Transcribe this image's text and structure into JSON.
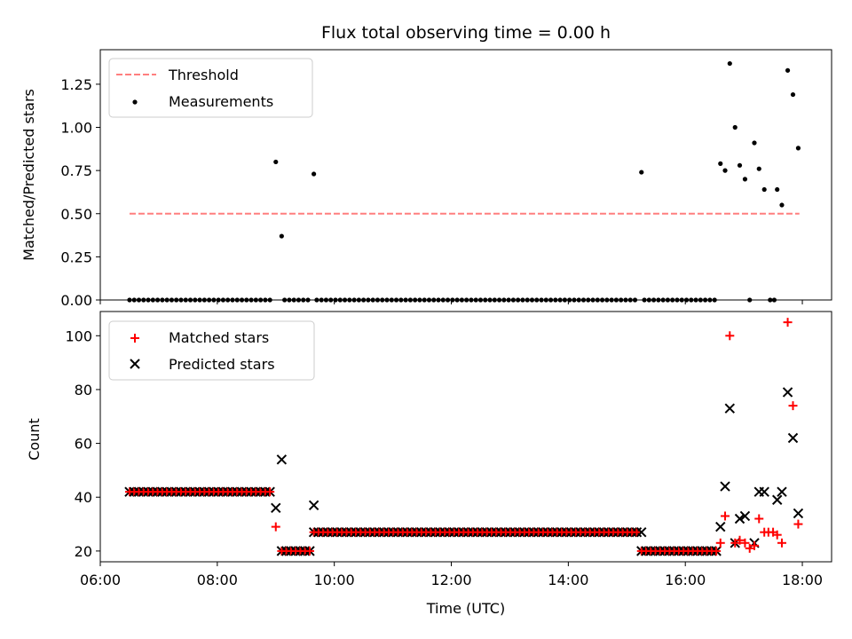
{
  "chart_data": [
    {
      "type": "scatter",
      "title": "Flux total observing time = 0.00 h",
      "xlabel": "",
      "ylabel": "Matched/Predicted stars",
      "xlim": [
        6.0,
        18.5
      ],
      "ylim": [
        0.0,
        1.45
      ],
      "yticks": [
        0.0,
        0.25,
        0.5,
        0.75,
        1.0,
        1.25
      ],
      "ytick_labels": [
        "0.00",
        "0.25",
        "0.50",
        "0.75",
        "1.00",
        "1.25"
      ],
      "legend_position": "top-left",
      "threshold": {
        "name": "Threshold",
        "x": [
          6.5,
          17.95
        ],
        "y": 0.5,
        "color": "#ff7f7f",
        "style": "dashed"
      },
      "series": [
        {
          "name": "Measurements",
          "color": "#000000",
          "marker": "dot",
          "points": [
            [
              9.0,
              0.8
            ],
            [
              9.1,
              0.37
            ],
            [
              9.65,
              0.73
            ],
            [
              15.25,
              0.74
            ],
            [
              16.6,
              0.79
            ],
            [
              16.68,
              0.75
            ],
            [
              16.76,
              1.37
            ],
            [
              16.85,
              1.0
            ],
            [
              16.93,
              0.78
            ],
            [
              17.02,
              0.7
            ],
            [
              17.18,
              0.91
            ],
            [
              17.26,
              0.76
            ],
            [
              17.35,
              0.64
            ],
            [
              17.57,
              0.64
            ],
            [
              17.65,
              0.55
            ],
            [
              17.75,
              1.33
            ],
            [
              17.84,
              1.19
            ],
            [
              17.93,
              0.88
            ],
            [
              17.1,
              0.0
            ],
            [
              17.45,
              0.0
            ],
            [
              17.52,
              0.0
            ]
          ],
          "zero_segments": [
            [
              6.5,
              8.95
            ],
            [
              9.15,
              9.6
            ],
            [
              9.7,
              15.2
            ],
            [
              15.3,
              16.55
            ]
          ],
          "zero_step": 0.08
        }
      ]
    },
    {
      "type": "scatter",
      "title": "",
      "xlabel": "Time (UTC)",
      "ylabel": "Count",
      "xlim": [
        6.0,
        18.5
      ],
      "ylim": [
        16,
        109
      ],
      "yticks": [
        20,
        40,
        60,
        80,
        100
      ],
      "xticks": [
        6,
        8,
        10,
        12,
        14,
        16,
        18
      ],
      "xtick_labels": [
        "06:00",
        "08:00",
        "10:00",
        "12:00",
        "14:00",
        "16:00",
        "18:00"
      ],
      "legend_position": "top-left",
      "series": [
        {
          "name": "Matched stars",
          "color": "#ff0000",
          "marker": "plus",
          "runs": [
            {
              "from": 6.5,
              "to": 8.95,
              "step": 0.08,
              "y": 42
            },
            {
              "from": 9.1,
              "to": 9.6,
              "step": 0.08,
              "y": 20
            },
            {
              "from": 9.65,
              "to": 15.2,
              "step": 0.08,
              "y": 27
            },
            {
              "from": 15.25,
              "to": 16.55,
              "step": 0.08,
              "y": 20
            }
          ],
          "points": [
            [
              9.0,
              29
            ],
            [
              16.6,
              23
            ],
            [
              16.68,
              33
            ],
            [
              16.76,
              100
            ],
            [
              16.85,
              23
            ],
            [
              16.93,
              24
            ],
            [
              17.02,
              23
            ],
            [
              17.1,
              21
            ],
            [
              17.18,
              22
            ],
            [
              17.26,
              32
            ],
            [
              17.35,
              27
            ],
            [
              17.42,
              27
            ],
            [
              17.5,
              27
            ],
            [
              17.57,
              26
            ],
            [
              17.65,
              23
            ],
            [
              17.75,
              105
            ],
            [
              17.84,
              74
            ],
            [
              17.93,
              30
            ]
          ]
        },
        {
          "name": "Predicted stars",
          "color": "#000000",
          "marker": "x",
          "points": [
            [
              9.0,
              36
            ],
            [
              9.1,
              54
            ],
            [
              9.65,
              37
            ],
            [
              15.25,
              27
            ],
            [
              16.6,
              29
            ],
            [
              16.68,
              44
            ],
            [
              16.76,
              73
            ],
            [
              16.85,
              23
            ],
            [
              16.93,
              32
            ],
            [
              17.02,
              33
            ],
            [
              17.18,
              23
            ],
            [
              17.26,
              42
            ],
            [
              17.35,
              42
            ],
            [
              17.57,
              39
            ],
            [
              17.65,
              42
            ],
            [
              17.75,
              79
            ],
            [
              17.84,
              62
            ],
            [
              17.93,
              34
            ]
          ]
        }
      ]
    }
  ]
}
